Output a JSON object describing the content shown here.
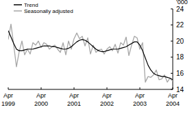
{
  "chart_data": {
    "type": "line",
    "y_label": "'000",
    "categories": [
      "Apr 1999",
      null,
      null,
      null,
      null,
      null,
      null,
      null,
      null,
      null,
      null,
      null,
      "Apr 2000",
      null,
      null,
      null,
      null,
      null,
      null,
      null,
      null,
      null,
      null,
      null,
      "Apr 2001",
      null,
      null,
      null,
      null,
      null,
      null,
      null,
      null,
      null,
      null,
      null,
      "Apr 2002",
      null,
      null,
      null,
      null,
      null,
      null,
      null,
      null,
      null,
      null,
      null,
      "Apr 2003",
      null,
      null,
      null,
      null,
      null,
      null,
      null,
      null,
      null,
      null,
      null,
      "Apr 2004"
    ],
    "series": [
      {
        "name": "Trend",
        "color": "#000000",
        "values": [
          21.3,
          20.5,
          19.7,
          19.0,
          18.8,
          18.8,
          18.9,
          19.0,
          19.0,
          19.0,
          19.1,
          19.2,
          19.3,
          19.4,
          19.4,
          19.4,
          19.3,
          19.3,
          19.2,
          19.1,
          19.0,
          19.0,
          19.1,
          19.3,
          19.6,
          19.9,
          20.1,
          20.2,
          20.1,
          19.9,
          19.6,
          19.3,
          19.0,
          18.8,
          18.7,
          18.7,
          18.8,
          18.9,
          19.0,
          19.0,
          19.0,
          19.1,
          19.2,
          19.3,
          19.5,
          19.7,
          19.9,
          19.9,
          19.5,
          18.8,
          17.9,
          17.0,
          16.4,
          16.0,
          15.8,
          15.7,
          15.6,
          15.6,
          15.5,
          15.4,
          15.2
        ]
      },
      {
        "name": "Seasonally adjusted",
        "color": "#a6a6a6",
        "values": [
          20.2,
          22.1,
          19.5,
          16.8,
          18.7,
          20.0,
          18.3,
          19.0,
          18.4,
          19.8,
          19.5,
          20.0,
          19.2,
          19.8,
          19.6,
          19.0,
          19.3,
          19.5,
          19.0,
          18.6,
          19.8,
          18.3,
          20.0,
          19.0,
          20.3,
          21.0,
          20.3,
          20.6,
          19.4,
          20.4,
          18.4,
          19.5,
          18.6,
          18.9,
          19.0,
          18.4,
          19.0,
          19.3,
          18.8,
          19.6,
          18.5,
          19.8,
          19.5,
          20.5,
          18.2,
          19.5,
          20.6,
          20.4,
          19.0,
          19.8,
          14.9,
          15.6,
          15.5,
          15.8,
          16.4,
          15.2,
          15.3,
          15.8,
          14.9,
          15.4,
          15.0
        ]
      }
    ],
    "ylim": [
      14,
      24
    ],
    "yticks": [
      14,
      16,
      18,
      20,
      22,
      24
    ],
    "legend": "top-left",
    "grid": false
  }
}
